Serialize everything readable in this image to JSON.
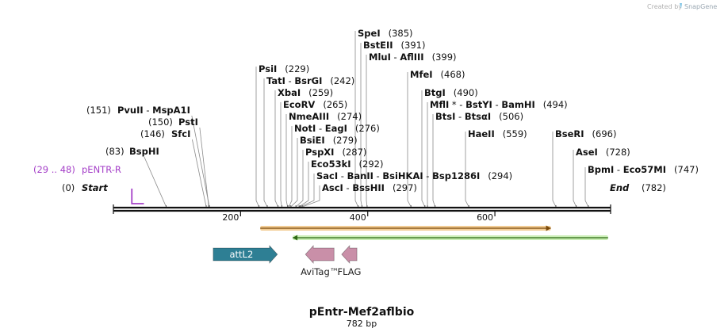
{
  "credit": {
    "prefix": "Created by",
    "brand": "SnapGene"
  },
  "plasmid": {
    "name": "pEntr-Mef2aflbio",
    "length_label": "782 bp",
    "length_bp": 782
  },
  "ends": {
    "start": {
      "name": "Start",
      "pos_label": "(0)"
    },
    "end": {
      "name": "End",
      "pos_label": "(782)"
    }
  },
  "primer": {
    "name": "pENTR-R",
    "pos_label": "(29 .. 48)",
    "color": "#a540c8"
  },
  "enzymes_left": [
    {
      "id": "pvuii",
      "pos_label": "(151)",
      "parts": [
        "PvuII",
        " - ",
        "MspA1I"
      ],
      "bp": 151
    },
    {
      "id": "psti",
      "pos_label": "(150)",
      "parts": [
        "PstI"
      ],
      "bp": 150
    },
    {
      "id": "sfci",
      "pos_label": "(146)",
      "parts": [
        "SfcI"
      ],
      "bp": 146
    },
    {
      "id": "bsphi",
      "pos_label": "(83)",
      "parts": [
        "BspHI"
      ],
      "bp": 83
    }
  ],
  "enzymes_right": [
    {
      "id": "spei",
      "parts": [
        "SpeI"
      ],
      "pos_label": "(385)",
      "bp": 385
    },
    {
      "id": "bsteii",
      "parts": [
        "BstEII"
      ],
      "pos_label": "(391)",
      "bp": 391
    },
    {
      "id": "mlui",
      "parts": [
        "MluI",
        " - ",
        "AflIII"
      ],
      "pos_label": "(399)",
      "bp": 399
    },
    {
      "id": "psii",
      "parts": [
        "PsiI"
      ],
      "pos_label": "(229)",
      "bp": 229
    },
    {
      "id": "tati",
      "parts": [
        "TatI",
        " - ",
        "BsrGI"
      ],
      "pos_label": "(242)",
      "bp": 242
    },
    {
      "id": "xbai",
      "parts": [
        "XbaI"
      ],
      "pos_label": "(259)",
      "bp": 259
    },
    {
      "id": "ecorv",
      "parts": [
        "EcoRV"
      ],
      "pos_label": "(265)",
      "bp": 265
    },
    {
      "id": "nmeaiii",
      "parts": [
        "NmeAIII"
      ],
      "pos_label": "(274)",
      "bp": 274
    },
    {
      "id": "noti",
      "parts": [
        "NotI",
        " - ",
        "EagI"
      ],
      "pos_label": "(276)",
      "bp": 276
    },
    {
      "id": "bsiei",
      "parts": [
        "BsiEI"
      ],
      "pos_label": "(279)",
      "bp": 279
    },
    {
      "id": "pspxi",
      "parts": [
        "PspXI"
      ],
      "pos_label": "(287)",
      "bp": 287
    },
    {
      "id": "eco53ki",
      "parts": [
        "Eco53kI"
      ],
      "pos_label": "(292)",
      "bp": 292
    },
    {
      "id": "saci",
      "parts": [
        "SacI",
        " - ",
        "BanII",
        " - ",
        "BsiHKAI",
        " - ",
        "Bsp1286I"
      ],
      "pos_label": "(294)",
      "bp": 294
    },
    {
      "id": "asci",
      "parts": [
        "AscI",
        " - ",
        "BssHII"
      ],
      "pos_label": "(297)",
      "bp": 297
    },
    {
      "id": "mfei",
      "parts": [
        "MfeI"
      ],
      "pos_label": "(468)",
      "bp": 468
    },
    {
      "id": "btgi",
      "parts": [
        "BtgI"
      ],
      "pos_label": "(490)",
      "bp": 490
    },
    {
      "id": "mfli",
      "parts": [
        "MflI",
        " * - ",
        "BstYI",
        " - ",
        "BamHI"
      ],
      "pos_label": "(494)",
      "bp": 494
    },
    {
      "id": "btsi",
      "parts": [
        "BtsI",
        " - ",
        "BtsαI"
      ],
      "pos_label": "(506)",
      "bp": 506
    },
    {
      "id": "haeii",
      "parts": [
        "HaeII"
      ],
      "pos_label": "(559)",
      "bp": 559
    },
    {
      "id": "bseri",
      "parts": [
        "BseRI"
      ],
      "pos_label": "(696)",
      "bp": 696
    },
    {
      "id": "asei",
      "parts": [
        "AseI"
      ],
      "pos_label": "(728)",
      "bp": 728
    },
    {
      "id": "bpmi",
      "parts": [
        "BpmI",
        " - ",
        "Eco57MI"
      ],
      "pos_label": "(747)",
      "bp": 747
    }
  ],
  "scale": {
    "ticks": [
      {
        "label": "200",
        "bp": 200
      },
      {
        "label": "400",
        "bp": 400
      },
      {
        "label": "600",
        "bp": 600
      }
    ]
  },
  "orfs": [
    {
      "name": "orf-orange",
      "start_bp": 231,
      "end_bp": 688,
      "direction": "forward",
      "color": "#e8a23c",
      "line_color": "#7a4a0a"
    },
    {
      "name": "orf-green",
      "start_bp": 282,
      "end_bp": 778,
      "direction": "reverse",
      "color": "#9fe07a",
      "line_color": "#2f6a14"
    }
  ],
  "features": [
    {
      "id": "attl2",
      "label": "attL2",
      "label_position": "inside",
      "start_bp": 157,
      "end_bp": 258,
      "direction": "forward",
      "color": "#2e7f94",
      "text_color": "#ffffff"
    },
    {
      "id": "avitag",
      "label": "AviTag™",
      "label_position": "below",
      "start_bp": 302,
      "end_bp": 347,
      "direction": "reverse",
      "color": "#c98fa8",
      "text_color": "#222222"
    },
    {
      "id": "flag",
      "label": "FLAG",
      "label_position": "below",
      "start_bp": 359,
      "end_bp": 383,
      "direction": "reverse",
      "color": "#c98fa8",
      "text_color": "#222222"
    }
  ]
}
